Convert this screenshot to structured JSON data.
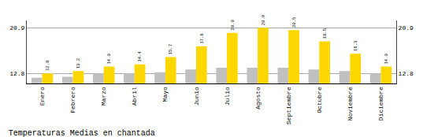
{
  "chart_data": {
    "type": "bar",
    "title": "Temperaturas Medias en chantada",
    "categories": [
      "Enero",
      "Febrero",
      "Marzo",
      "Abril",
      "Mayo",
      "Junio",
      "Julio",
      "Agosto",
      "Septiembre",
      "Octubre",
      "Noviembre",
      "Diciembre"
    ],
    "series": [
      {
        "color": "#C0C0C0",
        "values": [
          12.0,
          12.2,
          12.8,
          12.8,
          13.0,
          13.5,
          13.8,
          13.8,
          13.8,
          13.5,
          13.2,
          12.8
        ]
      },
      {
        "color": "#FFD700",
        "values": [
          12.8,
          13.2,
          14.0,
          14.4,
          15.7,
          17.6,
          20.0,
          20.9,
          20.5,
          18.5,
          16.3,
          14.0
        ],
        "data_labels": true,
        "value_labels": [
          "12.8",
          "13.2",
          "14.0",
          "14.4",
          "15.7",
          "17.6",
          "20.0",
          "20.9",
          "20.5",
          "18.5",
          "16.3",
          "14.0"
        ]
      }
    ],
    "ylim": [
      11.0,
      22.2
    ],
    "yticks": [
      12.8,
      20.9
    ],
    "y2lim": [
      11.0,
      22.2
    ],
    "y2ticks": [
      12.8,
      20.9
    ],
    "grid": true
  }
}
